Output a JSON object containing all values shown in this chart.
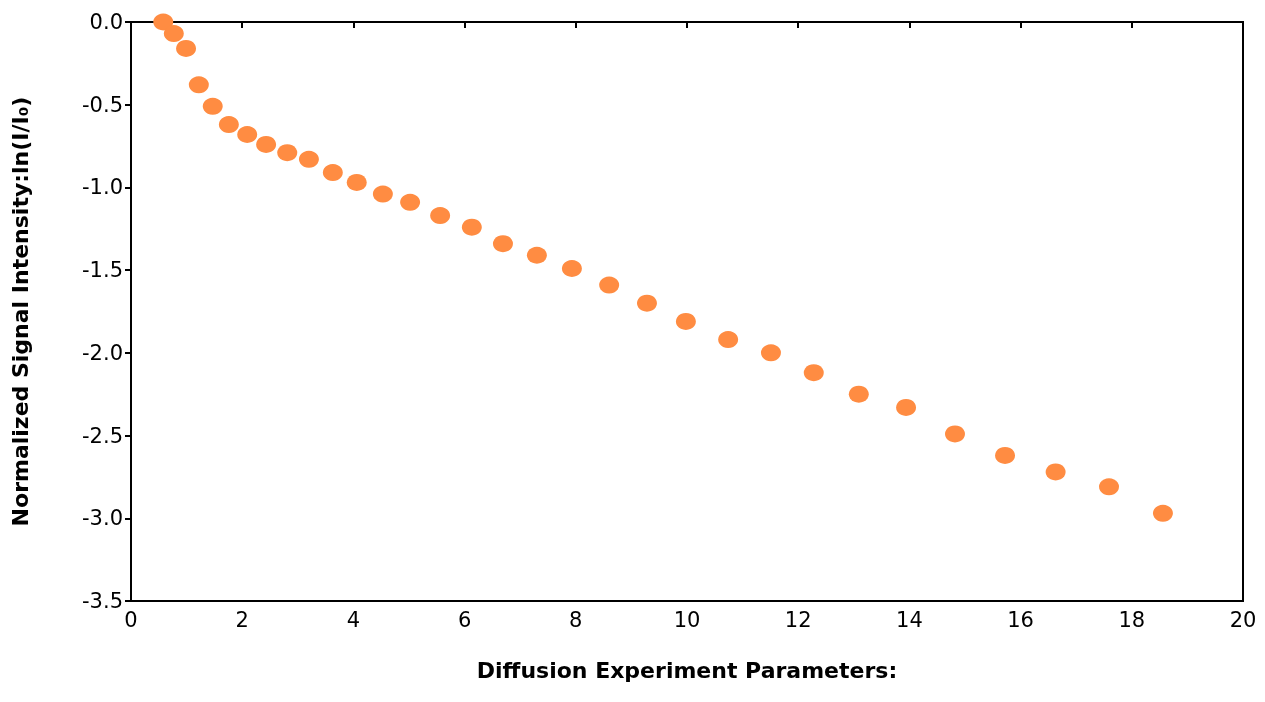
{
  "chart_data": {
    "type": "scatter",
    "xlabel": "Diffusion Experiment Parameters:",
    "ylabel": "Normalized Signal Intensity:ln(I/I₀)",
    "x": [
      0.58,
      0.77,
      0.99,
      1.22,
      1.47,
      1.76,
      2.09,
      2.43,
      2.81,
      3.2,
      3.63,
      4.06,
      4.53,
      5.02,
      5.56,
      6.13,
      6.69,
      7.3,
      7.93,
      8.6,
      9.28,
      9.98,
      10.74,
      11.51,
      12.28,
      13.09,
      13.94,
      14.82,
      15.72,
      16.63,
      17.59,
      18.56
    ],
    "series": [
      {
        "color": "#ff8c42",
        "values": [
          0,
          -0.07,
          -0.16,
          -0.38,
          -0.51,
          -0.62,
          -0.68,
          -0.74,
          -0.79,
          -0.83,
          -0.91,
          -0.97,
          -1.04,
          -1.09,
          -1.17,
          -1.24,
          -1.34,
          -1.41,
          -1.49,
          -1.59,
          -1.7,
          -1.81,
          -1.92,
          -2.0,
          -2.12,
          -2.25,
          -2.33,
          -2.49,
          -2.62,
          -2.72,
          -2.81,
          -2.97
        ]
      }
    ],
    "xlim": [
      0,
      20
    ],
    "xticks": [
      0,
      2,
      4,
      6,
      8,
      10,
      12,
      14,
      16,
      18,
      20
    ],
    "ylim": [
      -3.5,
      0
    ],
    "yticks": [
      {
        "value": -3.5,
        "label": "-3.5"
      },
      {
        "value": -3,
        "label": "-3.0"
      },
      {
        "value": -2.5,
        "label": "-2.5"
      },
      {
        "value": -2,
        "label": "-2.0"
      },
      {
        "value": -1.5,
        "label": "-1.5"
      },
      {
        "value": -1,
        "label": "-1.0"
      },
      {
        "value": -0.5,
        "label": "-0.5"
      },
      {
        "value": 0,
        "label": "0.0"
      }
    ],
    "grid": false,
    "marker": "circle"
  }
}
